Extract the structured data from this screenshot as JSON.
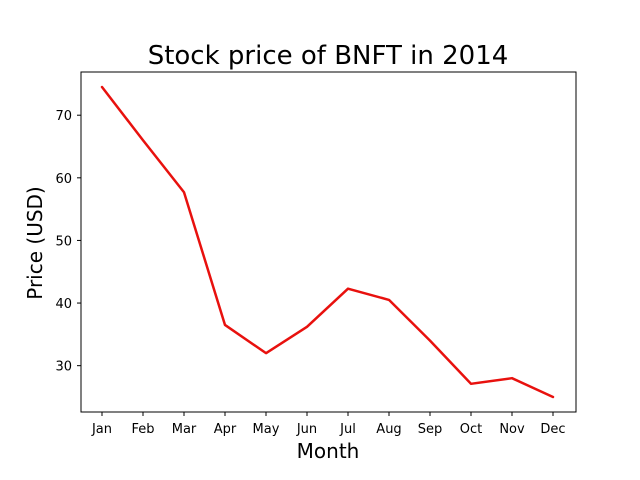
{
  "chart_data": {
    "type": "line",
    "title": "Stock price of BNFT in 2014",
    "xlabel": "Month",
    "ylabel": "Price (USD)",
    "categories": [
      "Jan",
      "Feb",
      "Mar",
      "Apr",
      "May",
      "Jun",
      "Jul",
      "Aug",
      "Sep",
      "Oct",
      "Nov",
      "Dec"
    ],
    "series": [
      {
        "values": [
          74.5,
          66.0,
          57.7,
          36.5,
          32.0,
          36.2,
          42.3,
          40.5,
          34.0,
          27.1,
          28.0,
          25.0
        ],
        "color": "#e8110e"
      }
    ],
    "ylim": [
      22.6,
      76.9
    ],
    "yticks": [
      30,
      40,
      50,
      60,
      70
    ],
    "grid": false,
    "legend": "none"
  }
}
